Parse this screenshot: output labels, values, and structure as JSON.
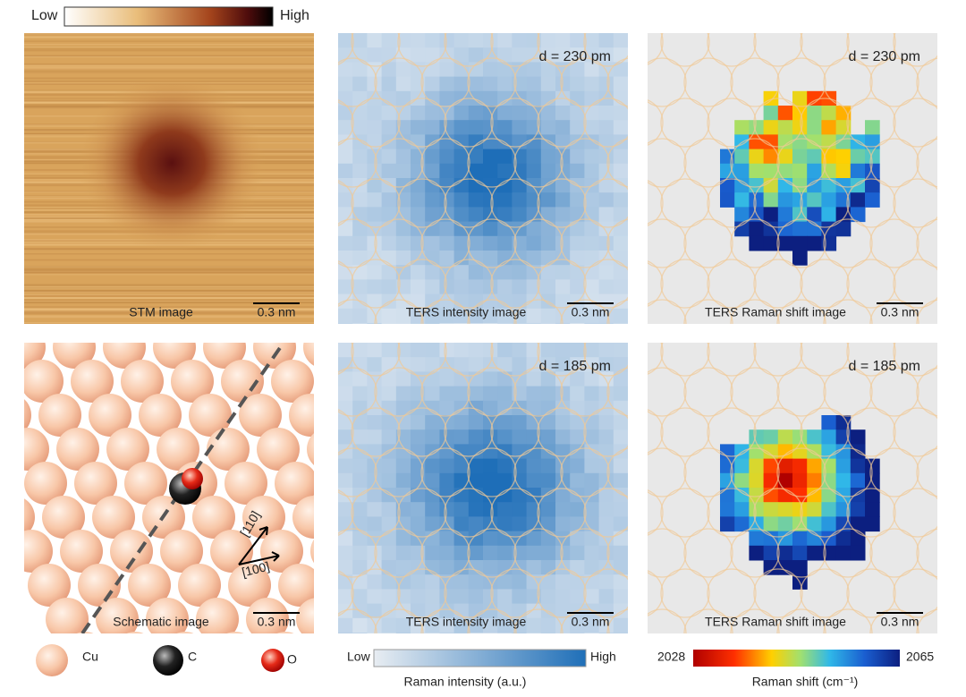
{
  "top_colorbar": {
    "low": "Low",
    "high": "High"
  },
  "panels": [
    {
      "caption": "STM  image",
      "scale": "0.3 nm"
    },
    {
      "caption": "TERS intensity image",
      "scale": "0.3 nm",
      "distance": "d = 230 pm"
    },
    {
      "caption": "TERS Raman shift image",
      "scale": "0.3 nm",
      "distance": "d = 230 pm"
    },
    {
      "caption": "Schematic image",
      "scale": "0.3 nm",
      "directions": [
        "[110]",
        "[100]"
      ]
    },
    {
      "caption": "TERS intensity image",
      "scale": "0.3 nm",
      "distance": "d = 185 pm"
    },
    {
      "caption": "TERS Raman shift image",
      "scale": "0.3 nm",
      "distance": "d = 185 pm"
    }
  ],
  "atom_legend": [
    "Cu",
    "C",
    "O"
  ],
  "intensity_colorbar": {
    "low": "Low",
    "high": "High",
    "label": "Raman intensity (a.u.)"
  },
  "shift_colorbar": {
    "min": "2028",
    "max": "2065",
    "label": "Raman shift (cm⁻¹)"
  }
}
